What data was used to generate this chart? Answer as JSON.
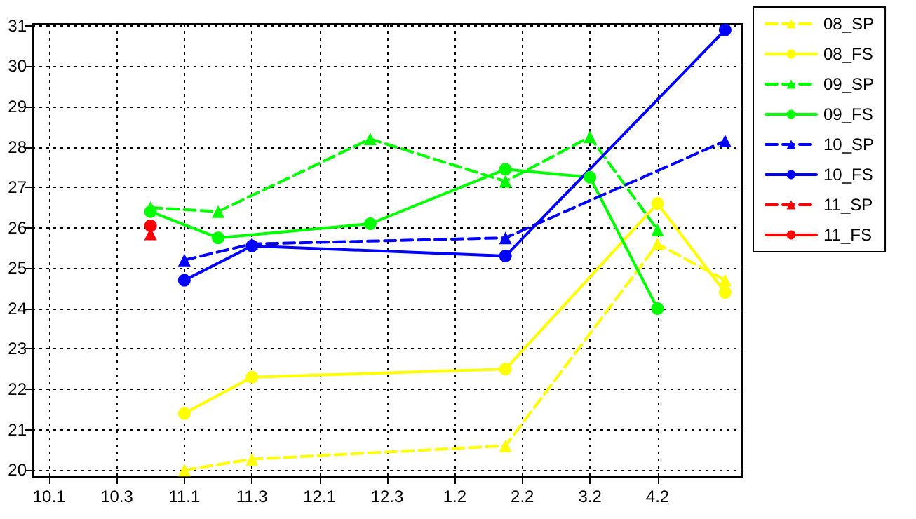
{
  "chart_data": {
    "type": "line",
    "grid": true,
    "legend": "top right",
    "categories": [
      null,
      "10.1",
      null,
      null,
      null,
      "10.3",
      null,
      null,
      null,
      "11.1",
      null,
      null,
      null,
      "11.3",
      null,
      null,
      null,
      "12.1",
      null,
      null,
      null,
      "12.3",
      null,
      null,
      null,
      "1.2",
      null,
      null,
      null,
      "2.2",
      null,
      null,
      null,
      "3.2",
      null,
      null,
      null,
      "4.2",
      null,
      null,
      null,
      null,
      null
    ],
    "ylim": [
      19.83,
      31.05
    ],
    "yticks": [
      20,
      21,
      22,
      23,
      24,
      25,
      26,
      27,
      28,
      29,
      30,
      31
    ],
    "series": [
      {
        "name": "08_SP",
        "color": "#ffff00",
        "marker": "triangle",
        "line_style": "dashed",
        "values": [
          null,
          null,
          null,
          null,
          null,
          null,
          null,
          null,
          null,
          20.0,
          null,
          null,
          null,
          20.27,
          null,
          null,
          null,
          null,
          null,
          null,
          null,
          null,
          null,
          null,
          null,
          null,
          null,
          null,
          20.6,
          null,
          null,
          null,
          null,
          null,
          null,
          null,
          null,
          25.6,
          null,
          null,
          null,
          24.7,
          null
        ]
      },
      {
        "name": "08_FS",
        "color": "#ffff00",
        "marker": "circle",
        "line_style": "solid",
        "values": [
          null,
          null,
          null,
          null,
          null,
          null,
          null,
          null,
          null,
          21.4,
          null,
          null,
          null,
          22.3,
          null,
          null,
          null,
          null,
          null,
          null,
          null,
          null,
          null,
          null,
          null,
          null,
          null,
          null,
          22.5,
          null,
          null,
          null,
          null,
          null,
          null,
          null,
          null,
          26.6,
          null,
          null,
          null,
          24.4,
          null
        ]
      },
      {
        "name": "09_SP",
        "color": "#00ff00",
        "marker": "triangle",
        "line_style": "dashed",
        "values": [
          null,
          null,
          null,
          null,
          null,
          null,
          null,
          26.5,
          null,
          null,
          null,
          26.4,
          null,
          null,
          null,
          null,
          null,
          null,
          null,
          null,
          28.2,
          null,
          null,
          null,
          null,
          null,
          null,
          null,
          27.15,
          null,
          null,
          null,
          null,
          28.25,
          null,
          null,
          null,
          25.95,
          null,
          null,
          null,
          null,
          null
        ]
      },
      {
        "name": "09_FS",
        "color": "#00ff00",
        "marker": "circle",
        "line_style": "solid",
        "values": [
          null,
          null,
          null,
          null,
          null,
          null,
          null,
          26.4,
          null,
          null,
          null,
          25.75,
          null,
          null,
          null,
          null,
          null,
          null,
          null,
          null,
          26.1,
          null,
          null,
          null,
          null,
          null,
          null,
          null,
          27.45,
          null,
          null,
          null,
          null,
          27.25,
          null,
          null,
          null,
          24.0,
          null,
          null,
          null,
          null,
          null
        ]
      },
      {
        "name": "10_SP",
        "color": "#0000ff",
        "marker": "triangle",
        "line_style": "dashed",
        "values": [
          null,
          null,
          null,
          null,
          null,
          null,
          null,
          null,
          null,
          25.2,
          null,
          null,
          null,
          25.6,
          null,
          null,
          null,
          null,
          null,
          null,
          null,
          null,
          null,
          null,
          null,
          null,
          null,
          null,
          25.75,
          null,
          null,
          null,
          null,
          null,
          null,
          null,
          null,
          null,
          null,
          null,
          null,
          28.15,
          null
        ]
      },
      {
        "name": "10_FS",
        "color": "#0000ff",
        "marker": "circle",
        "line_style": "solid",
        "values": [
          null,
          null,
          null,
          null,
          null,
          null,
          null,
          null,
          null,
          24.7,
          null,
          null,
          null,
          25.55,
          null,
          null,
          null,
          null,
          null,
          null,
          null,
          null,
          null,
          null,
          null,
          null,
          null,
          null,
          25.3,
          null,
          null,
          null,
          null,
          null,
          null,
          null,
          null,
          null,
          null,
          null,
          null,
          30.9,
          null
        ]
      },
      {
        "name": "11_SP",
        "color": "#ff0000",
        "marker": "triangle",
        "line_style": "dashed",
        "values": [
          null,
          null,
          null,
          null,
          null,
          null,
          null,
          25.85,
          null,
          null,
          null,
          null,
          null,
          null,
          null,
          null,
          null,
          null,
          null,
          null,
          null,
          null,
          null,
          null,
          null,
          null,
          null,
          null,
          null,
          null,
          null,
          null,
          null,
          null,
          null,
          null,
          null,
          null,
          null,
          null,
          null,
          null,
          null
        ]
      },
      {
        "name": "11_FS",
        "color": "#ff0000",
        "marker": "circle",
        "line_style": "solid",
        "values": [
          null,
          null,
          null,
          null,
          null,
          null,
          null,
          26.05,
          null,
          null,
          null,
          null,
          null,
          null,
          null,
          null,
          null,
          null,
          null,
          null,
          null,
          null,
          null,
          null,
          null,
          null,
          null,
          null,
          null,
          null,
          null,
          null,
          null,
          null,
          null,
          null,
          null,
          null,
          null,
          null,
          null,
          null,
          null
        ]
      }
    ]
  }
}
